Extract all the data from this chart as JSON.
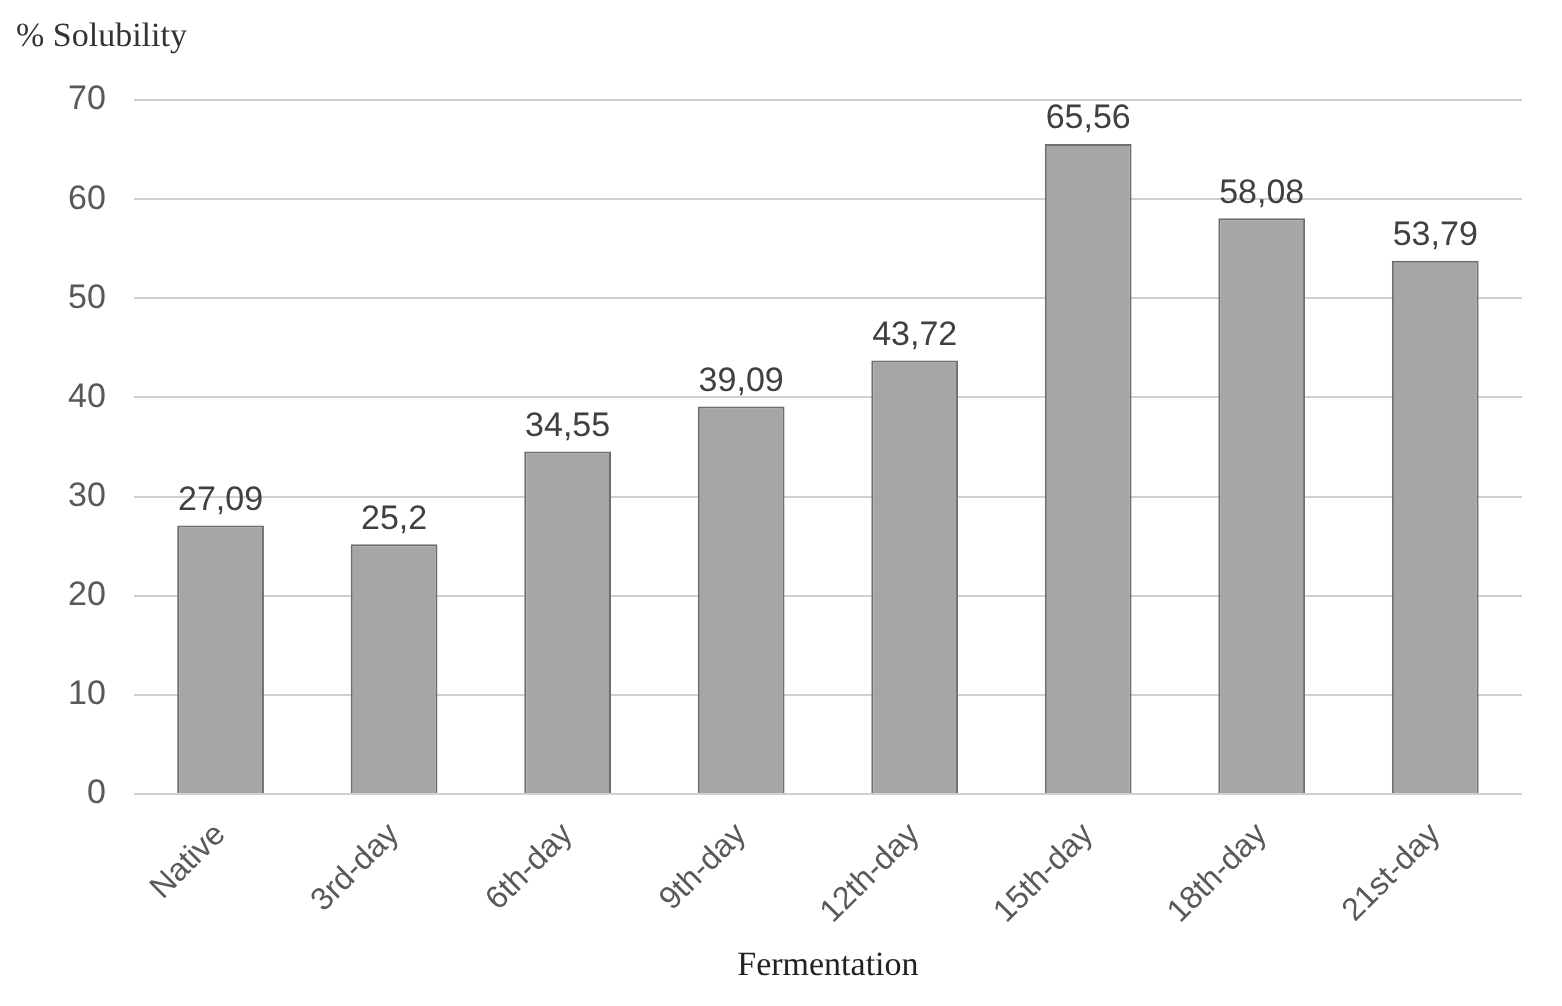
{
  "chart_data": {
    "type": "bar",
    "ylabel": "% Solubility",
    "xlabel": "Fermentation",
    "categories": [
      "Native",
      "3rd-day",
      "6th-day",
      "9th-day",
      "12th-day",
      "15th-day",
      "18th-day",
      "21st-day"
    ],
    "values": [
      27.09,
      25.2,
      34.55,
      39.09,
      43.72,
      65.56,
      58.08,
      53.79
    ],
    "value_labels": [
      "27,09",
      "25,2",
      "34,55",
      "39,09",
      "43,72",
      "65,56",
      "58,08",
      "53,79"
    ],
    "color": "#a6a6a6",
    "ylim": [
      0,
      70
    ],
    "yticks": [
      0,
      10,
      20,
      30,
      40,
      50,
      60,
      70
    ],
    "grid": "y",
    "legend": false
  }
}
